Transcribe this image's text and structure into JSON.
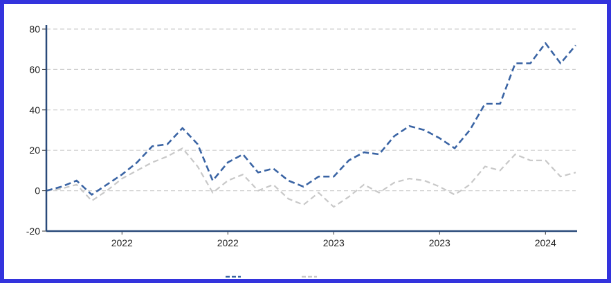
{
  "chart_data": {
    "type": "line",
    "title": "",
    "xlabel": "",
    "ylabel": "",
    "ylim": [
      -20,
      80
    ],
    "y_ticks": [
      -20,
      0,
      20,
      40,
      60,
      80
    ],
    "x_tick_labels": [
      "2022",
      "2022",
      "2023",
      "2023",
      "2024"
    ],
    "x_tick_index": [
      5,
      12,
      19,
      26,
      33
    ],
    "grid": "horizontal-dashed",
    "legend": "bottom",
    "series": [
      {
        "name": "",
        "color": "#3a64a4",
        "style": "dashed",
        "values": [
          0,
          2,
          5,
          -2,
          3,
          8,
          14,
          22,
          23,
          31,
          23,
          5,
          14,
          18,
          9,
          11,
          5,
          2,
          7,
          7,
          15,
          19,
          18,
          27,
          32,
          30,
          26,
          21,
          30,
          43,
          43,
          63,
          63,
          73,
          63,
          72
        ]
      },
      {
        "name": "",
        "color": "#c8c8c8",
        "style": "dashed",
        "values": [
          0,
          1,
          3,
          -5,
          0,
          6,
          10,
          14,
          17,
          21,
          12,
          -1,
          5,
          8,
          0,
          3,
          -4,
          -7,
          -1,
          -8,
          -3,
          3,
          -1,
          4,
          6,
          5,
          2,
          -2,
          3,
          12,
          10,
          18,
          15,
          15,
          7,
          9
        ]
      }
    ]
  }
}
